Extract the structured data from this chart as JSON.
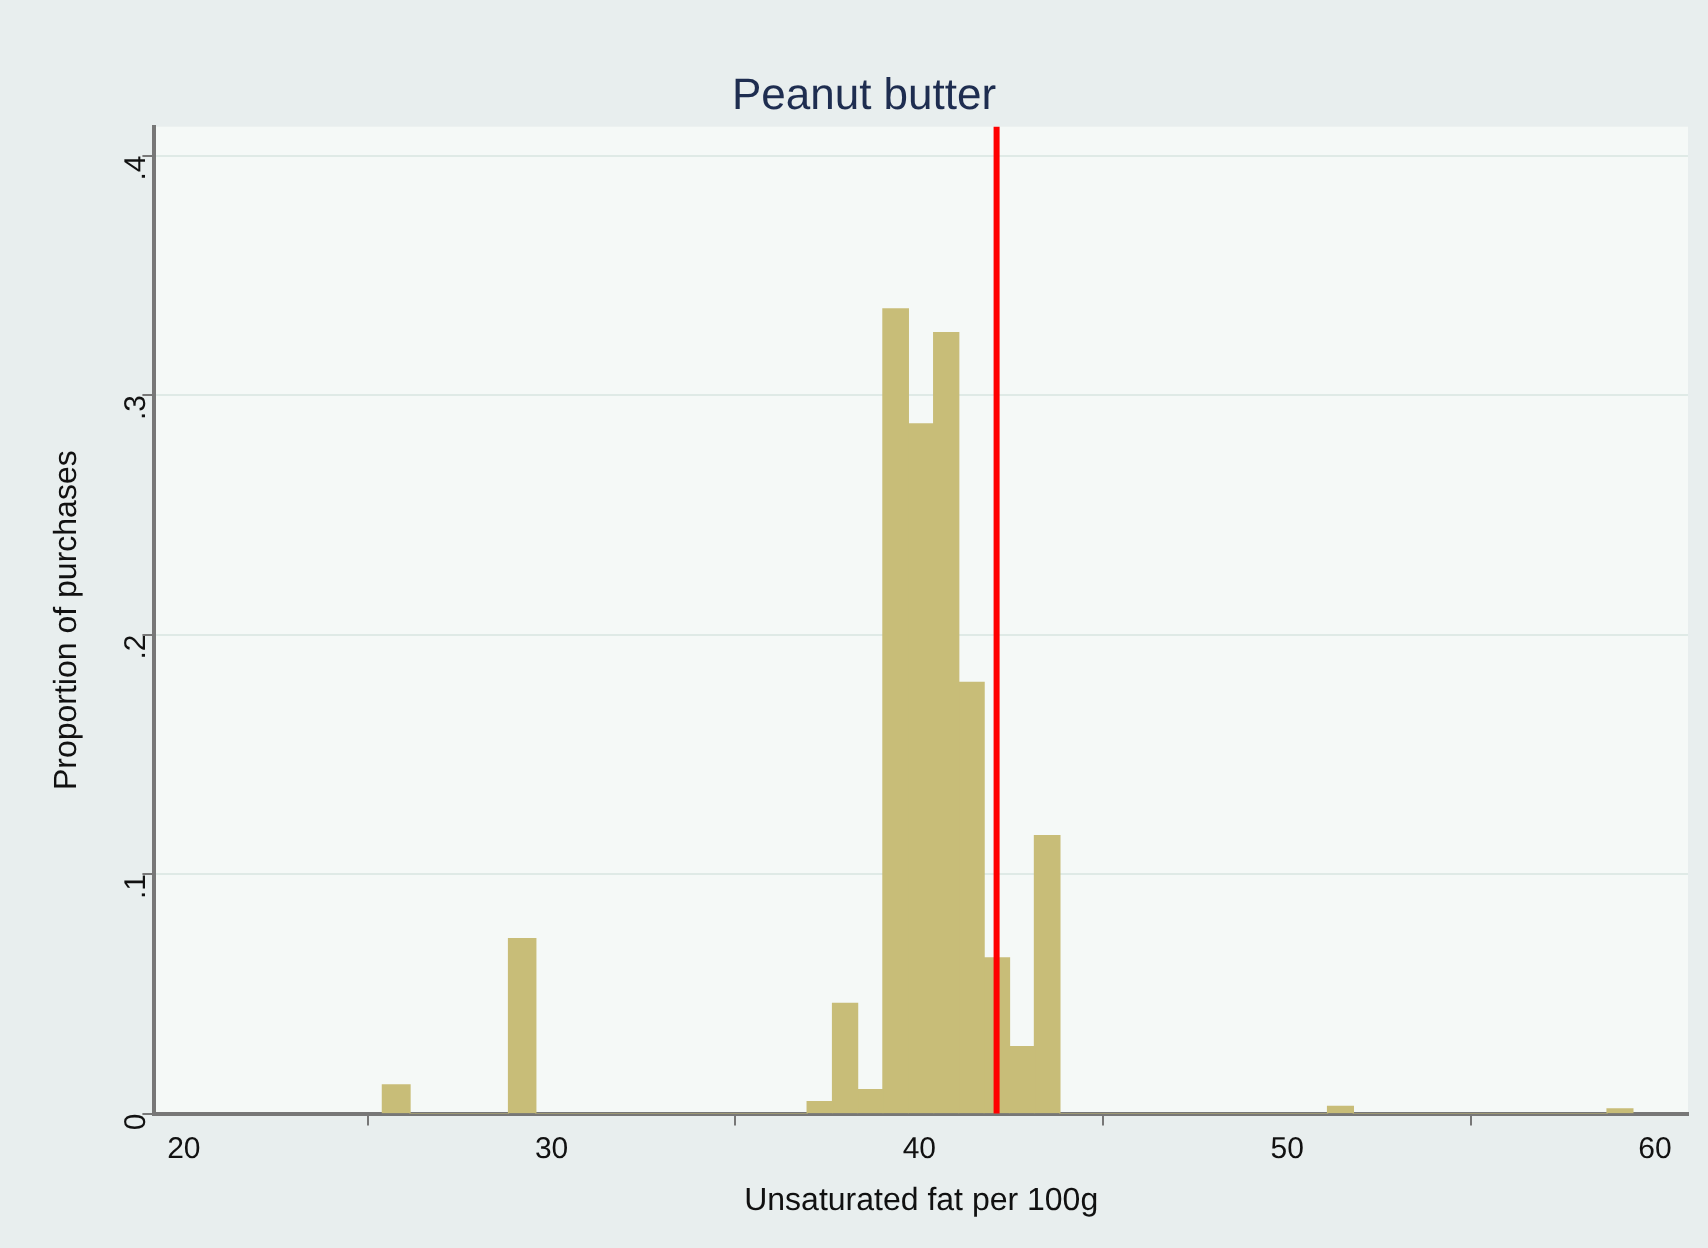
{
  "chart_data": {
    "type": "histogram",
    "title": "Peanut butter",
    "xlabel": "Unsaturated fat per 100g",
    "ylabel": "Proportion of purchases",
    "bins": [
      25.4,
      26.15,
      28.83,
      29.57,
      36.95,
      37.64,
      38.32,
      39.01,
      39.7,
      40.39,
      41.07,
      41.76,
      42.45,
      43.13,
      43.82,
      51.1,
      51.8,
      58.7,
      59.4
    ],
    "values": [
      0.012,
      0,
      0.073,
      0,
      0.005,
      0.046,
      0.01,
      0.336,
      0.288,
      0.326,
      0.18,
      0.065,
      0.028,
      0.116,
      0,
      0.003,
      0,
      0.002
    ],
    "color": "#c8bd78",
    "xlim": [
      19.2,
      60.9
    ],
    "xticks": [
      20,
      30,
      40,
      50,
      60
    ],
    "ylim": [
      0,
      0.412
    ],
    "yticks": [
      0,
      {
        "value": 0.1,
        "label": ".1"
      },
      {
        "value": 0.2,
        "label": ".2"
      },
      {
        "value": 0.3,
        "label": ".3"
      },
      {
        "value": 0.4,
        "label": ".4"
      }
    ],
    "grid": "y",
    "legend": false,
    "ref_lines": [
      {
        "axis": "x",
        "value": 42.1,
        "color": "#ff0000"
      }
    ]
  }
}
